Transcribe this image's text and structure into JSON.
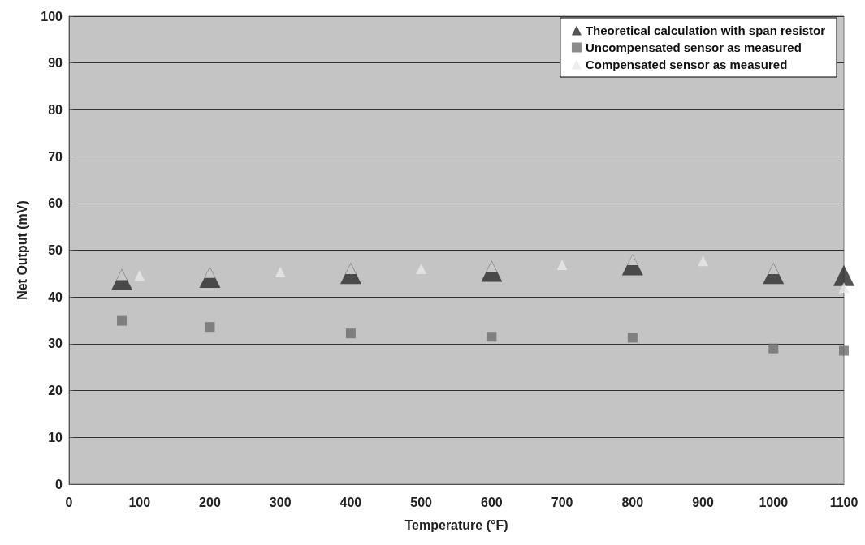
{
  "chart_data": {
    "type": "scatter",
    "xlabel": "Temperature (°F)",
    "ylabel": "Net Output (mV)",
    "xlim": [
      0,
      1100
    ],
    "xticks": [
      0,
      100,
      200,
      300,
      400,
      500,
      600,
      700,
      800,
      900,
      1000,
      1100
    ],
    "ylim": [
      0,
      100
    ],
    "yticks": [
      0,
      10,
      20,
      30,
      40,
      50,
      60,
      70,
      80,
      90,
      100
    ],
    "grid": "y",
    "legend": "top right",
    "series": [
      {
        "name": "Theoretical calculation with span resistor",
        "color": "#2b2b2b",
        "marker": "triangle",
        "x": [
          75,
          200,
          400,
          600,
          800,
          1000,
          1100
        ],
        "values": [
          43.7,
          44.2,
          45,
          45.5,
          46.9,
          45,
          44.6
        ]
      },
      {
        "name": "Uncompensated sensor as measured",
        "color": "#6e6e6e",
        "marker": "square",
        "x": [
          75,
          200,
          400,
          600,
          800,
          1000,
          1100
        ],
        "values": [
          34.9,
          33.6,
          32.2,
          31.5,
          31.3,
          29,
          28.5
        ]
      },
      {
        "name": "Compensated sensor as measured",
        "color": "#e8e8e8",
        "marker": "triangle",
        "x": [
          75,
          100,
          200,
          300,
          400,
          500,
          600,
          700,
          800,
          900,
          1000,
          1100
        ],
        "values": [
          44.7,
          44.6,
          45.2,
          45.3,
          46,
          46,
          46.5,
          46.9,
          47.9,
          47.7,
          46,
          42
        ]
      }
    ]
  }
}
